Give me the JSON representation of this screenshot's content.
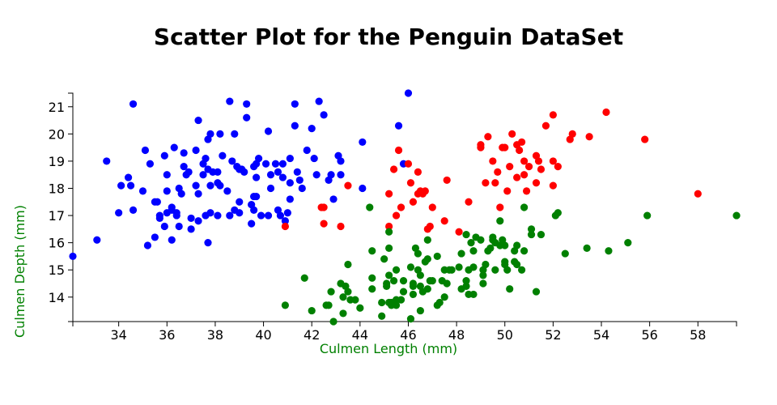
{
  "chart_data": {
    "type": "scatter",
    "title": "Scatter Plot for the Penguin DataSet",
    "xlabel": "Culmen Length (mm)",
    "ylabel": "Culmen Depth (mm)",
    "axis_label_color": "#008000",
    "xlim": [
      32.1,
      59.6
    ],
    "ylim": [
      13.1,
      21.5
    ],
    "x_ticks": [
      34,
      36,
      38,
      40,
      42,
      44,
      46,
      48,
      50,
      52,
      54,
      56,
      58
    ],
    "y_ticks": [
      14,
      15,
      16,
      17,
      18,
      19,
      20,
      21
    ],
    "grid": false,
    "legend": "none",
    "series": [
      {
        "color": "#0000ff",
        "points": [
          [
            32.1,
            15.5
          ],
          [
            33.1,
            16.1
          ],
          [
            33.5,
            19.0
          ],
          [
            34.0,
            17.1
          ],
          [
            34.1,
            18.1
          ],
          [
            34.4,
            18.4
          ],
          [
            34.5,
            18.1
          ],
          [
            34.6,
            21.1
          ],
          [
            34.6,
            17.2
          ],
          [
            35.0,
            17.9
          ],
          [
            35.1,
            19.4
          ],
          [
            35.2,
            15.9
          ],
          [
            35.3,
            18.9
          ],
          [
            35.5,
            16.2
          ],
          [
            35.5,
            17.5
          ],
          [
            35.6,
            17.5
          ],
          [
            35.7,
            16.9
          ],
          [
            35.7,
            17.0
          ],
          [
            35.9,
            16.6
          ],
          [
            35.9,
            19.2
          ],
          [
            36.0,
            17.9
          ],
          [
            36.0,
            17.1
          ],
          [
            36.0,
            18.5
          ],
          [
            36.2,
            16.1
          ],
          [
            36.2,
            17.2
          ],
          [
            36.2,
            17.3
          ],
          [
            36.3,
            19.5
          ],
          [
            36.4,
            17.0
          ],
          [
            36.4,
            17.1
          ],
          [
            36.5,
            16.6
          ],
          [
            36.5,
            18.0
          ],
          [
            36.6,
            17.8
          ],
          [
            36.7,
            18.8
          ],
          [
            36.7,
            19.3
          ],
          [
            36.8,
            18.5
          ],
          [
            36.9,
            18.6
          ],
          [
            37.0,
            16.9
          ],
          [
            37.0,
            16.5
          ],
          [
            37.2,
            18.1
          ],
          [
            37.2,
            19.4
          ],
          [
            37.3,
            20.5
          ],
          [
            37.3,
            16.8
          ],
          [
            37.3,
            17.8
          ],
          [
            37.5,
            18.9
          ],
          [
            37.5,
            18.5
          ],
          [
            37.6,
            19.1
          ],
          [
            37.6,
            17.0
          ],
          [
            37.7,
            18.7
          ],
          [
            37.7,
            16.0
          ],
          [
            37.7,
            19.8
          ],
          [
            37.8,
            17.1
          ],
          [
            37.8,
            18.1
          ],
          [
            37.8,
            20.0
          ],
          [
            37.9,
            18.6
          ],
          [
            38.1,
            18.6
          ],
          [
            38.1,
            17.0
          ],
          [
            38.1,
            18.2
          ],
          [
            38.2,
            18.1
          ],
          [
            38.2,
            20.0
          ],
          [
            38.3,
            19.2
          ],
          [
            38.5,
            17.9
          ],
          [
            38.6,
            21.2
          ],
          [
            38.6,
            17.0
          ],
          [
            38.7,
            19.0
          ],
          [
            38.8,
            17.2
          ],
          [
            38.8,
            20.0
          ],
          [
            38.9,
            18.8
          ],
          [
            39.0,
            17.1
          ],
          [
            39.0,
            18.7
          ],
          [
            39.0,
            17.5
          ],
          [
            39.1,
            18.7
          ],
          [
            39.2,
            18.6
          ],
          [
            39.3,
            20.6
          ],
          [
            39.3,
            21.1
          ],
          [
            39.5,
            17.4
          ],
          [
            39.5,
            16.7
          ],
          [
            39.6,
            17.7
          ],
          [
            39.6,
            18.8
          ],
          [
            39.6,
            17.2
          ],
          [
            39.7,
            18.4
          ],
          [
            39.7,
            17.7
          ],
          [
            39.7,
            18.9
          ],
          [
            39.8,
            19.1
          ],
          [
            39.9,
            17.0
          ],
          [
            40.1,
            18.9
          ],
          [
            40.2,
            17.0
          ],
          [
            40.2,
            20.1
          ],
          [
            40.3,
            18.0
          ],
          [
            40.3,
            18.5
          ],
          [
            40.5,
            18.9
          ],
          [
            40.6,
            18.6
          ],
          [
            40.6,
            17.2
          ],
          [
            40.7,
            17.0
          ],
          [
            40.8,
            18.4
          ],
          [
            40.8,
            18.9
          ],
          [
            40.9,
            16.8
          ],
          [
            41.0,
            17.1
          ],
          [
            41.1,
            17.6
          ],
          [
            41.1,
            19.1
          ],
          [
            41.1,
            18.2
          ],
          [
            41.3,
            21.1
          ],
          [
            41.3,
            20.3
          ],
          [
            41.4,
            18.6
          ],
          [
            41.5,
            18.3
          ],
          [
            41.6,
            18.0
          ],
          [
            41.8,
            19.4
          ],
          [
            42.0,
            20.2
          ],
          [
            42.1,
            19.1
          ],
          [
            42.2,
            18.5
          ],
          [
            42.3,
            21.2
          ],
          [
            42.5,
            20.7
          ],
          [
            42.7,
            18.3
          ],
          [
            42.8,
            18.5
          ],
          [
            42.9,
            17.6
          ],
          [
            43.1,
            19.2
          ],
          [
            43.2,
            19.0
          ],
          [
            43.2,
            18.5
          ],
          [
            44.1,
            19.7
          ],
          [
            44.1,
            18.0
          ],
          [
            45.8,
            18.9
          ],
          [
            46.0,
            21.5
          ],
          [
            45.6,
            20.3
          ]
        ]
      },
      {
        "color": "#ff0000",
        "points": [
          [
            40.9,
            16.6
          ],
          [
            42.4,
            17.3
          ],
          [
            42.5,
            17.3
          ],
          [
            42.5,
            16.7
          ],
          [
            43.2,
            16.6
          ],
          [
            43.5,
            18.1
          ],
          [
            45.2,
            16.6
          ],
          [
            45.2,
            17.8
          ],
          [
            45.4,
            18.7
          ],
          [
            45.5,
            17.0
          ],
          [
            45.6,
            19.4
          ],
          [
            45.7,
            17.3
          ],
          [
            46.0,
            18.9
          ],
          [
            46.1,
            18.2
          ],
          [
            46.2,
            17.5
          ],
          [
            46.4,
            17.8
          ],
          [
            46.4,
            18.6
          ],
          [
            46.5,
            17.9
          ],
          [
            46.6,
            17.8
          ],
          [
            46.7,
            17.9
          ],
          [
            46.8,
            16.5
          ],
          [
            46.9,
            16.6
          ],
          [
            47.0,
            17.3
          ],
          [
            47.5,
            16.8
          ],
          [
            47.6,
            18.3
          ],
          [
            48.1,
            16.4
          ],
          [
            48.5,
            17.5
          ],
          [
            49.0,
            19.5
          ],
          [
            49.0,
            19.6
          ],
          [
            49.2,
            18.2
          ],
          [
            49.3,
            19.9
          ],
          [
            49.5,
            19.0
          ],
          [
            49.6,
            18.2
          ],
          [
            49.7,
            18.6
          ],
          [
            49.8,
            17.3
          ],
          [
            49.9,
            19.5
          ],
          [
            50.0,
            19.5
          ],
          [
            50.1,
            17.9
          ],
          [
            50.2,
            18.8
          ],
          [
            50.3,
            20.0
          ],
          [
            50.5,
            19.6
          ],
          [
            50.5,
            18.4
          ],
          [
            50.6,
            19.4
          ],
          [
            50.7,
            19.7
          ],
          [
            50.8,
            18.5
          ],
          [
            50.8,
            19.0
          ],
          [
            50.9,
            17.9
          ],
          [
            51.0,
            18.8
          ],
          [
            51.3,
            18.2
          ],
          [
            51.3,
            19.2
          ],
          [
            51.4,
            19.0
          ],
          [
            51.5,
            18.7
          ],
          [
            51.7,
            20.3
          ],
          [
            52.0,
            18.1
          ],
          [
            52.0,
            19.0
          ],
          [
            52.0,
            20.7
          ],
          [
            52.2,
            18.8
          ],
          [
            52.7,
            19.8
          ],
          [
            52.8,
            20.0
          ],
          [
            53.5,
            19.9
          ],
          [
            54.2,
            20.8
          ],
          [
            55.8,
            19.8
          ],
          [
            58.0,
            17.8
          ]
        ]
      },
      {
        "color": "#008000",
        "points": [
          [
            40.9,
            13.7
          ],
          [
            41.7,
            14.7
          ],
          [
            42.0,
            13.5
          ],
          [
            42.6,
            13.7
          ],
          [
            42.7,
            13.7
          ],
          [
            42.8,
            14.2
          ],
          [
            42.9,
            13.1
          ],
          [
            43.2,
            14.5
          ],
          [
            43.3,
            14.0
          ],
          [
            43.3,
            13.4
          ],
          [
            43.4,
            14.4
          ],
          [
            43.5,
            15.2
          ],
          [
            43.5,
            14.2
          ],
          [
            43.6,
            13.9
          ],
          [
            43.8,
            13.9
          ],
          [
            44.0,
            13.6
          ],
          [
            44.4,
            17.3
          ],
          [
            44.5,
            15.7
          ],
          [
            44.5,
            14.3
          ],
          [
            44.5,
            14.7
          ],
          [
            44.9,
            13.3
          ],
          [
            44.9,
            13.8
          ],
          [
            45.0,
            15.4
          ],
          [
            45.1,
            14.5
          ],
          [
            45.1,
            14.4
          ],
          [
            45.2,
            13.8
          ],
          [
            45.2,
            14.8
          ],
          [
            45.2,
            15.8
          ],
          [
            45.2,
            16.4
          ],
          [
            45.3,
            13.7
          ],
          [
            45.3,
            13.8
          ],
          [
            45.4,
            14.6
          ],
          [
            45.5,
            13.7
          ],
          [
            45.5,
            13.9
          ],
          [
            45.5,
            15.0
          ],
          [
            45.7,
            13.9
          ],
          [
            45.8,
            14.6
          ],
          [
            45.8,
            14.2
          ],
          [
            46.1,
            13.2
          ],
          [
            46.1,
            15.1
          ],
          [
            46.2,
            14.1
          ],
          [
            46.2,
            14.5
          ],
          [
            46.2,
            14.4
          ],
          [
            46.3,
            15.8
          ],
          [
            46.4,
            15.0
          ],
          [
            46.4,
            15.6
          ],
          [
            46.5,
            13.5
          ],
          [
            46.5,
            14.4
          ],
          [
            46.5,
            14.8
          ],
          [
            46.6,
            14.2
          ],
          [
            46.7,
            15.3
          ],
          [
            46.8,
            14.3
          ],
          [
            46.8,
            15.4
          ],
          [
            46.8,
            16.1
          ],
          [
            46.9,
            14.6
          ],
          [
            47.0,
            14.6
          ],
          [
            47.2,
            13.7
          ],
          [
            47.2,
            15.5
          ],
          [
            47.3,
            13.8
          ],
          [
            47.4,
            14.6
          ],
          [
            47.5,
            14.0
          ],
          [
            47.5,
            15.0
          ],
          [
            47.6,
            14.5
          ],
          [
            47.7,
            15.0
          ],
          [
            47.8,
            15.0
          ],
          [
            48.1,
            15.1
          ],
          [
            48.2,
            14.3
          ],
          [
            48.2,
            15.6
          ],
          [
            48.4,
            14.4
          ],
          [
            48.4,
            14.6
          ],
          [
            48.4,
            16.3
          ],
          [
            48.5,
            14.1
          ],
          [
            48.5,
            15.0
          ],
          [
            48.6,
            16.0
          ],
          [
            48.7,
            14.1
          ],
          [
            48.7,
            15.1
          ],
          [
            48.7,
            15.7
          ],
          [
            48.8,
            16.2
          ],
          [
            49.0,
            16.1
          ],
          [
            49.1,
            14.5
          ],
          [
            49.1,
            14.8
          ],
          [
            49.1,
            15.0
          ],
          [
            49.2,
            15.2
          ],
          [
            49.3,
            15.7
          ],
          [
            49.4,
            15.8
          ],
          [
            49.5,
            16.1
          ],
          [
            49.5,
            16.2
          ],
          [
            49.6,
            15.0
          ],
          [
            49.6,
            16.0
          ],
          [
            49.8,
            15.9
          ],
          [
            49.8,
            16.8
          ],
          [
            49.9,
            16.1
          ],
          [
            50.0,
            15.2
          ],
          [
            50.0,
            15.3
          ],
          [
            50.0,
            15.9
          ],
          [
            50.1,
            15.0
          ],
          [
            50.2,
            14.3
          ],
          [
            50.4,
            15.3
          ],
          [
            50.4,
            15.7
          ],
          [
            50.5,
            15.2
          ],
          [
            50.5,
            15.9
          ],
          [
            50.7,
            15.0
          ],
          [
            50.8,
            15.7
          ],
          [
            50.8,
            17.3
          ],
          [
            51.1,
            16.3
          ],
          [
            51.1,
            16.5
          ],
          [
            51.3,
            14.2
          ],
          [
            51.5,
            16.3
          ],
          [
            52.1,
            17.0
          ],
          [
            52.2,
            17.1
          ],
          [
            52.5,
            15.6
          ],
          [
            53.4,
            15.8
          ],
          [
            54.3,
            15.7
          ],
          [
            55.1,
            16.0
          ],
          [
            55.9,
            17.0
          ],
          [
            59.6,
            17.0
          ]
        ]
      }
    ]
  }
}
